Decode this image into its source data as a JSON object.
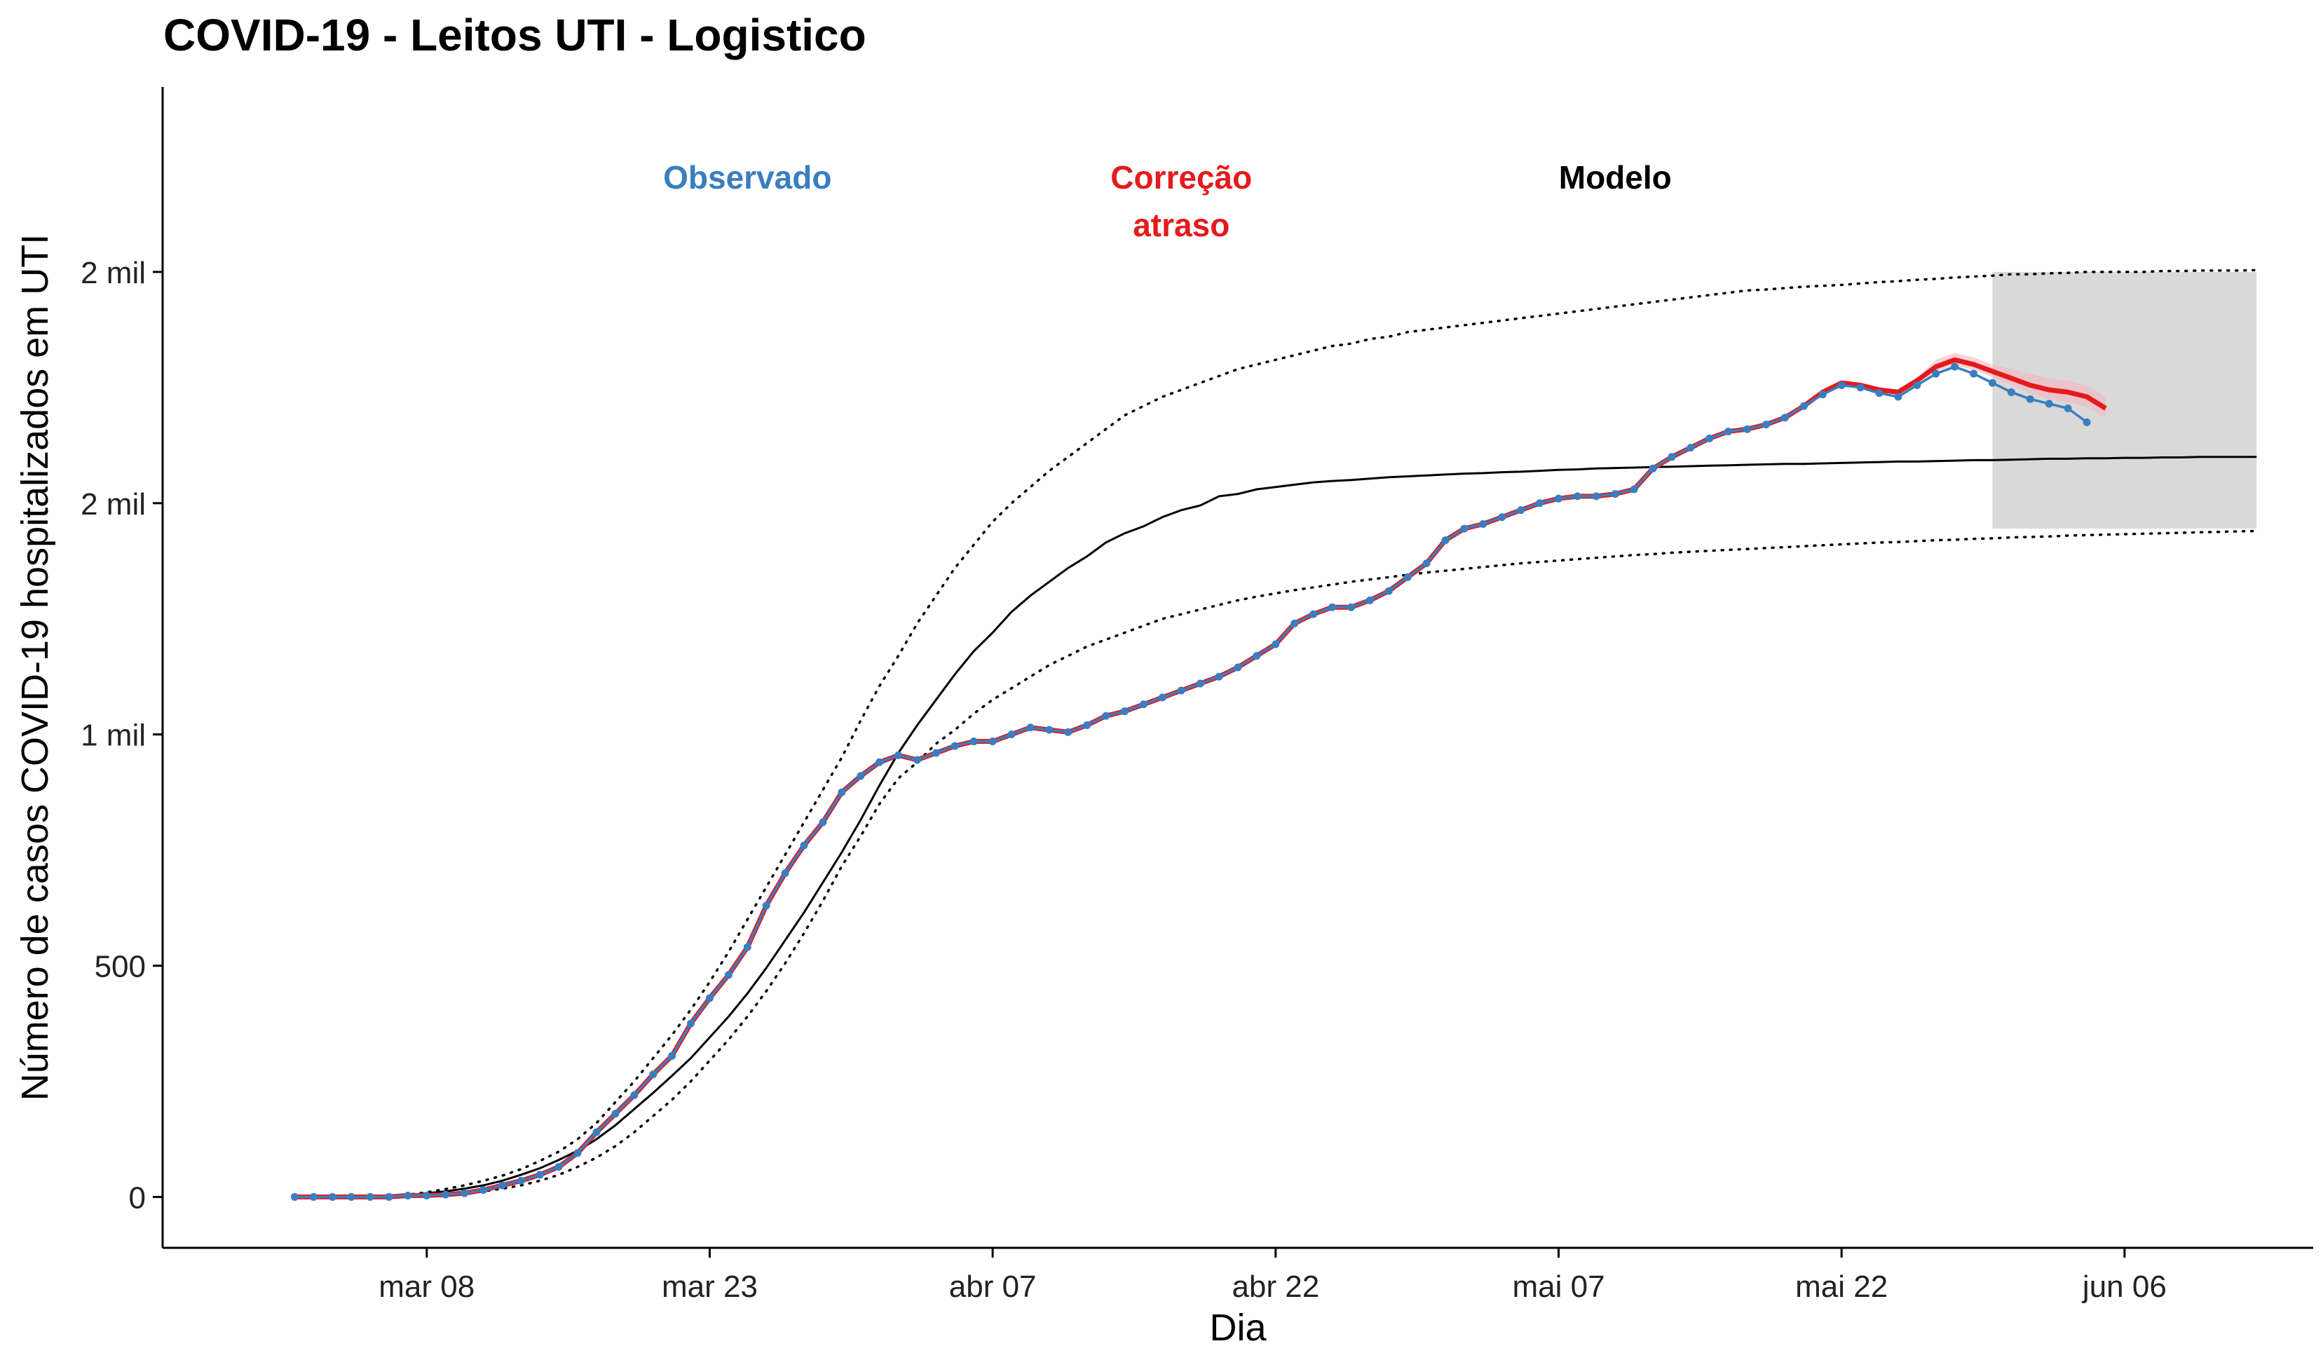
{
  "chart_data": {
    "type": "line",
    "title": "COVID-19 - Leitos UTI - Logistico",
    "xlabel": "Dia",
    "ylabel": "Número de casos COVID-19 hospitalizados em UTI",
    "x_start": "2020-03-01",
    "xlim": [
      "2020-02-23",
      "2020-06-16"
    ],
    "ylim": [
      -110,
      2400
    ],
    "x_ticks": [
      {
        "date": "2020-03-08",
        "label": "mar 08"
      },
      {
        "date": "2020-03-23",
        "label": "mar 23"
      },
      {
        "date": "2020-04-07",
        "label": "abr 07"
      },
      {
        "date": "2020-04-22",
        "label": "abr 22"
      },
      {
        "date": "2020-05-07",
        "label": "mai 07"
      },
      {
        "date": "2020-05-22",
        "label": "mai 22"
      },
      {
        "date": "2020-06-06",
        "label": "jun 06"
      }
    ],
    "y_ticks": [
      {
        "value": 0,
        "label": "0"
      },
      {
        "value": 500,
        "label": "500"
      },
      {
        "value": 1000,
        "label": "1 mil"
      },
      {
        "value": 1500,
        "label": "2 mil"
      },
      {
        "value": 2000,
        "label": "2 mil"
      }
    ],
    "annotations": [
      {
        "lines": [
          "Observado"
        ],
        "color": "#3a7ebf",
        "x": "2020-03-25",
        "y": 2180
      },
      {
        "lines": [
          "Correção",
          "atraso"
        ],
        "color": "#e41a1c",
        "x": "2020-04-17",
        "y": 2180
      },
      {
        "lines": [
          "Modelo"
        ],
        "color": "#000000",
        "x": "2020-05-10",
        "y": 2180
      }
    ],
    "forecast_region": {
      "x0": "2020-05-30",
      "x1": "2020-06-13",
      "y0": 1445,
      "y1": 2000,
      "color": "#d9d9d9"
    },
    "series": [
      {
        "name": "Observado",
        "color": "#3a7ebf",
        "values": [
          0,
          0,
          0,
          0,
          0,
          0,
          3,
          3,
          5,
          8,
          15,
          25,
          35,
          48,
          65,
          95,
          140,
          180,
          220,
          265,
          305,
          375,
          430,
          480,
          540,
          630,
          700,
          760,
          810,
          875,
          910,
          940,
          955,
          945,
          960,
          975,
          985,
          985,
          1000,
          1015,
          1010,
          1005,
          1020,
          1040,
          1050,
          1065,
          1080,
          1095,
          1110,
          1125,
          1145,
          1170,
          1195,
          1240,
          1260,
          1275,
          1275,
          1290,
          1310,
          1340,
          1370,
          1420,
          1445,
          1455,
          1470,
          1485,
          1500,
          1510,
          1515,
          1515,
          1520,
          1530,
          1575,
          1600,
          1620,
          1640,
          1655,
          1660,
          1670,
          1685,
          1710,
          1735,
          1755,
          1750,
          1738,
          1730,
          1755,
          1780,
          1795,
          1780,
          1760,
          1740,
          1725,
          1715,
          1705,
          1675
        ]
      },
      {
        "name": "Correção atraso",
        "color": "#e41a1c",
        "values": [
          0,
          0,
          0,
          0,
          0,
          0,
          3,
          3,
          5,
          8,
          15,
          25,
          35,
          48,
          65,
          95,
          140,
          180,
          220,
          265,
          305,
          375,
          430,
          480,
          540,
          630,
          700,
          760,
          810,
          875,
          910,
          940,
          955,
          945,
          960,
          975,
          985,
          985,
          1000,
          1015,
          1010,
          1005,
          1020,
          1040,
          1050,
          1065,
          1080,
          1095,
          1110,
          1125,
          1145,
          1170,
          1195,
          1240,
          1260,
          1275,
          1275,
          1290,
          1310,
          1340,
          1370,
          1420,
          1445,
          1455,
          1470,
          1485,
          1500,
          1510,
          1515,
          1515,
          1520,
          1530,
          1575,
          1600,
          1620,
          1640,
          1655,
          1660,
          1670,
          1685,
          1710,
          1740,
          1760,
          1755,
          1745,
          1740,
          1765,
          1795,
          1810,
          1800,
          1785,
          1770,
          1755,
          1745,
          1740,
          1730,
          1705
        ],
        "band_upper": [
          1710,
          1740,
          1760,
          1755,
          1745,
          1740,
          1770,
          1810,
          1825,
          1815,
          1800,
          1790,
          1780,
          1770,
          1765,
          1755,
          1730
        ],
        "band_lower": [
          1710,
          1740,
          1760,
          1755,
          1745,
          1740,
          1760,
          1785,
          1798,
          1788,
          1772,
          1755,
          1738,
          1725,
          1718,
          1708,
          1685
        ]
      },
      {
        "name": "Modelo",
        "color": "#000000",
        "values": [
          0,
          0,
          0,
          0,
          0,
          0,
          3,
          8,
          12,
          18,
          25,
          35,
          48,
          62,
          80,
          100,
          125,
          155,
          190,
          225,
          262,
          300,
          345,
          390,
          440,
          495,
          555,
          615,
          680,
          745,
          815,
          890,
          960,
          1020,
          1075,
          1130,
          1180,
          1220,
          1265,
          1300,
          1330,
          1360,
          1385,
          1415,
          1435,
          1450,
          1470,
          1485,
          1495,
          1515,
          1520,
          1530,
          1535,
          1540,
          1545,
          1548,
          1550,
          1553,
          1556,
          1558,
          1560,
          1562,
          1564,
          1565,
          1567,
          1568,
          1570,
          1572,
          1573,
          1575,
          1576,
          1577,
          1578,
          1579,
          1580,
          1581,
          1582,
          1583,
          1584,
          1585,
          1585,
          1586,
          1587,
          1588,
          1589,
          1590,
          1590,
          1591,
          1592,
          1593,
          1593,
          1594,
          1595,
          1596,
          1596,
          1597,
          1597,
          1598,
          1598,
          1599,
          1599,
          1600,
          1600,
          1600,
          1600
        ],
        "upper": [
          0,
          0,
          0,
          0,
          0,
          0,
          5,
          10,
          17,
          25,
          35,
          46,
          60,
          78,
          98,
          125,
          160,
          205,
          250,
          300,
          350,
          405,
          465,
          530,
          600,
          670,
          740,
          810,
          880,
          950,
          1030,
          1105,
          1170,
          1240,
          1300,
          1360,
          1410,
          1460,
          1500,
          1535,
          1570,
          1600,
          1630,
          1660,
          1690,
          1710,
          1730,
          1745,
          1760,
          1775,
          1790,
          1800,
          1810,
          1820,
          1830,
          1840,
          1845,
          1855,
          1860,
          1870,
          1875,
          1880,
          1885,
          1890,
          1895,
          1900,
          1905,
          1910,
          1915,
          1920,
          1925,
          1930,
          1935,
          1940,
          1945,
          1950,
          1955,
          1960,
          1962,
          1965,
          1968,
          1970,
          1972,
          1975,
          1978,
          1980,
          1983,
          1985,
          1988,
          1990,
          1992,
          1995,
          1995,
          1997,
          1998,
          2000,
          2000,
          2000,
          2000,
          2002,
          2002,
          2003,
          2003,
          2003,
          2004
        ],
        "lower": [
          0,
          0,
          0,
          0,
          0,
          0,
          1,
          3,
          5,
          8,
          12,
          18,
          25,
          35,
          48,
          65,
          85,
          110,
          140,
          175,
          210,
          250,
          295,
          340,
          390,
          445,
          505,
          570,
          640,
          715,
          780,
          850,
          905,
          940,
          980,
          1010,
          1045,
          1075,
          1100,
          1125,
          1150,
          1170,
          1190,
          1205,
          1220,
          1235,
          1250,
          1260,
          1270,
          1280,
          1290,
          1298,
          1305,
          1312,
          1318,
          1324,
          1330,
          1335,
          1340,
          1345,
          1350,
          1354,
          1358,
          1362,
          1366,
          1370,
          1373,
          1376,
          1379,
          1382,
          1385,
          1388,
          1390,
          1393,
          1395,
          1397,
          1399,
          1401,
          1403,
          1405,
          1407,
          1409,
          1411,
          1413,
          1415,
          1416,
          1418,
          1420,
          1421,
          1423,
          1424,
          1426,
          1427,
          1428,
          1430,
          1431,
          1432,
          1433,
          1434,
          1435,
          1436,
          1437,
          1438,
          1439,
          1440
        ]
      }
    ],
    "grid": false,
    "legend": "none"
  }
}
